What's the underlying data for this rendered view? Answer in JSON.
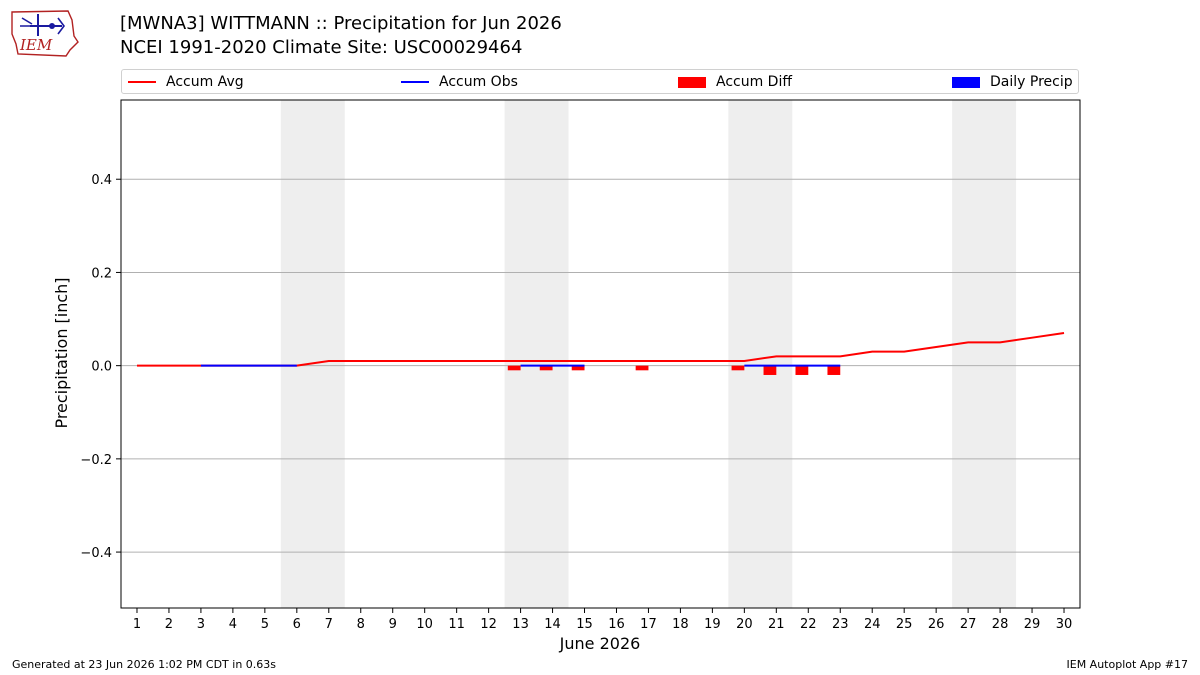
{
  "header": {
    "title_line1": "[MWNA3] WITTMANN :: Precipitation for Jun 2026",
    "title_line2": "NCEI 1991-2020 Climate Site: USC00029464",
    "logo_text": "IEM"
  },
  "legend": {
    "placement": "top",
    "items": [
      {
        "label": "Accum Avg",
        "kind": "line",
        "color": "#ff0000"
      },
      {
        "label": "Accum Obs",
        "kind": "line",
        "color": "#0000ff"
      },
      {
        "label": "Accum Diff",
        "kind": "box",
        "color": "#ff0000"
      },
      {
        "label": "Daily Precip",
        "kind": "box",
        "color": "#0000ff"
      }
    ]
  },
  "footer": {
    "generated": "Generated at 23 Jun 2026 1:02 PM CDT in 0.63s",
    "app": "IEM Autoplot App #17"
  },
  "chart_data": {
    "type": "line",
    "xlabel": "June 2026",
    "ylabel": "Precipitation [inch]",
    "xlim": [
      0.5,
      30.5
    ],
    "ylim": [
      -0.52,
      0.57
    ],
    "x_ticks": [
      1,
      2,
      3,
      4,
      5,
      6,
      7,
      8,
      9,
      10,
      11,
      12,
      13,
      14,
      15,
      16,
      17,
      18,
      19,
      20,
      21,
      22,
      23,
      24,
      25,
      26,
      27,
      28,
      29,
      30
    ],
    "y_ticks": [
      -0.4,
      -0.2,
      0.0,
      0.2,
      0.4
    ],
    "y_tick_labels": [
      "−0.4",
      "−0.2",
      "0.0",
      "0.2",
      "0.4"
    ],
    "grid": "horizontal",
    "weekend_shading": [
      [
        5.5,
        7.5
      ],
      [
        12.5,
        14.5
      ],
      [
        19.5,
        21.5
      ],
      [
        26.5,
        28.5
      ]
    ],
    "shading_color": "#eeeeee",
    "series": [
      {
        "name": "Accum Avg",
        "type": "line",
        "color": "#ff0000",
        "x": [
          1,
          2,
          3,
          4,
          5,
          6,
          7,
          8,
          9,
          10,
          11,
          12,
          13,
          14,
          15,
          16,
          17,
          18,
          19,
          20,
          21,
          22,
          23,
          24,
          25,
          26,
          27,
          28,
          29,
          30
        ],
        "values": [
          0,
          0,
          0,
          0,
          0,
          0,
          0.01,
          0.01,
          0.01,
          0.01,
          0.01,
          0.01,
          0.01,
          0.01,
          0.01,
          0.01,
          0.01,
          0.01,
          0.01,
          0.01,
          0.02,
          0.02,
          0.02,
          0.03,
          0.03,
          0.04,
          0.05,
          0.05,
          0.06,
          0.07
        ]
      },
      {
        "name": "Accum Obs",
        "type": "line",
        "color": "#0000ff",
        "segments": [
          {
            "x": [
              3,
              4,
              5,
              6
            ],
            "values": [
              0,
              0,
              0,
              0
            ]
          },
          {
            "x": [
              13,
              14,
              15
            ],
            "values": [
              0,
              0,
              0
            ]
          },
          {
            "x": [
              20,
              21,
              22,
              23
            ],
            "values": [
              0,
              0,
              0,
              0
            ]
          }
        ]
      },
      {
        "name": "Accum Diff",
        "type": "bar",
        "color": "#ff0000",
        "x": [
          12.8,
          13.8,
          14.8,
          16.8,
          19.8,
          20.8,
          21.8,
          22.8
        ],
        "values": [
          -0.01,
          -0.01,
          -0.01,
          -0.01,
          -0.01,
          -0.02,
          -0.02,
          -0.02
        ]
      },
      {
        "name": "Daily Precip",
        "type": "bar",
        "color": "#0000ff",
        "x": [],
        "values": []
      }
    ]
  }
}
